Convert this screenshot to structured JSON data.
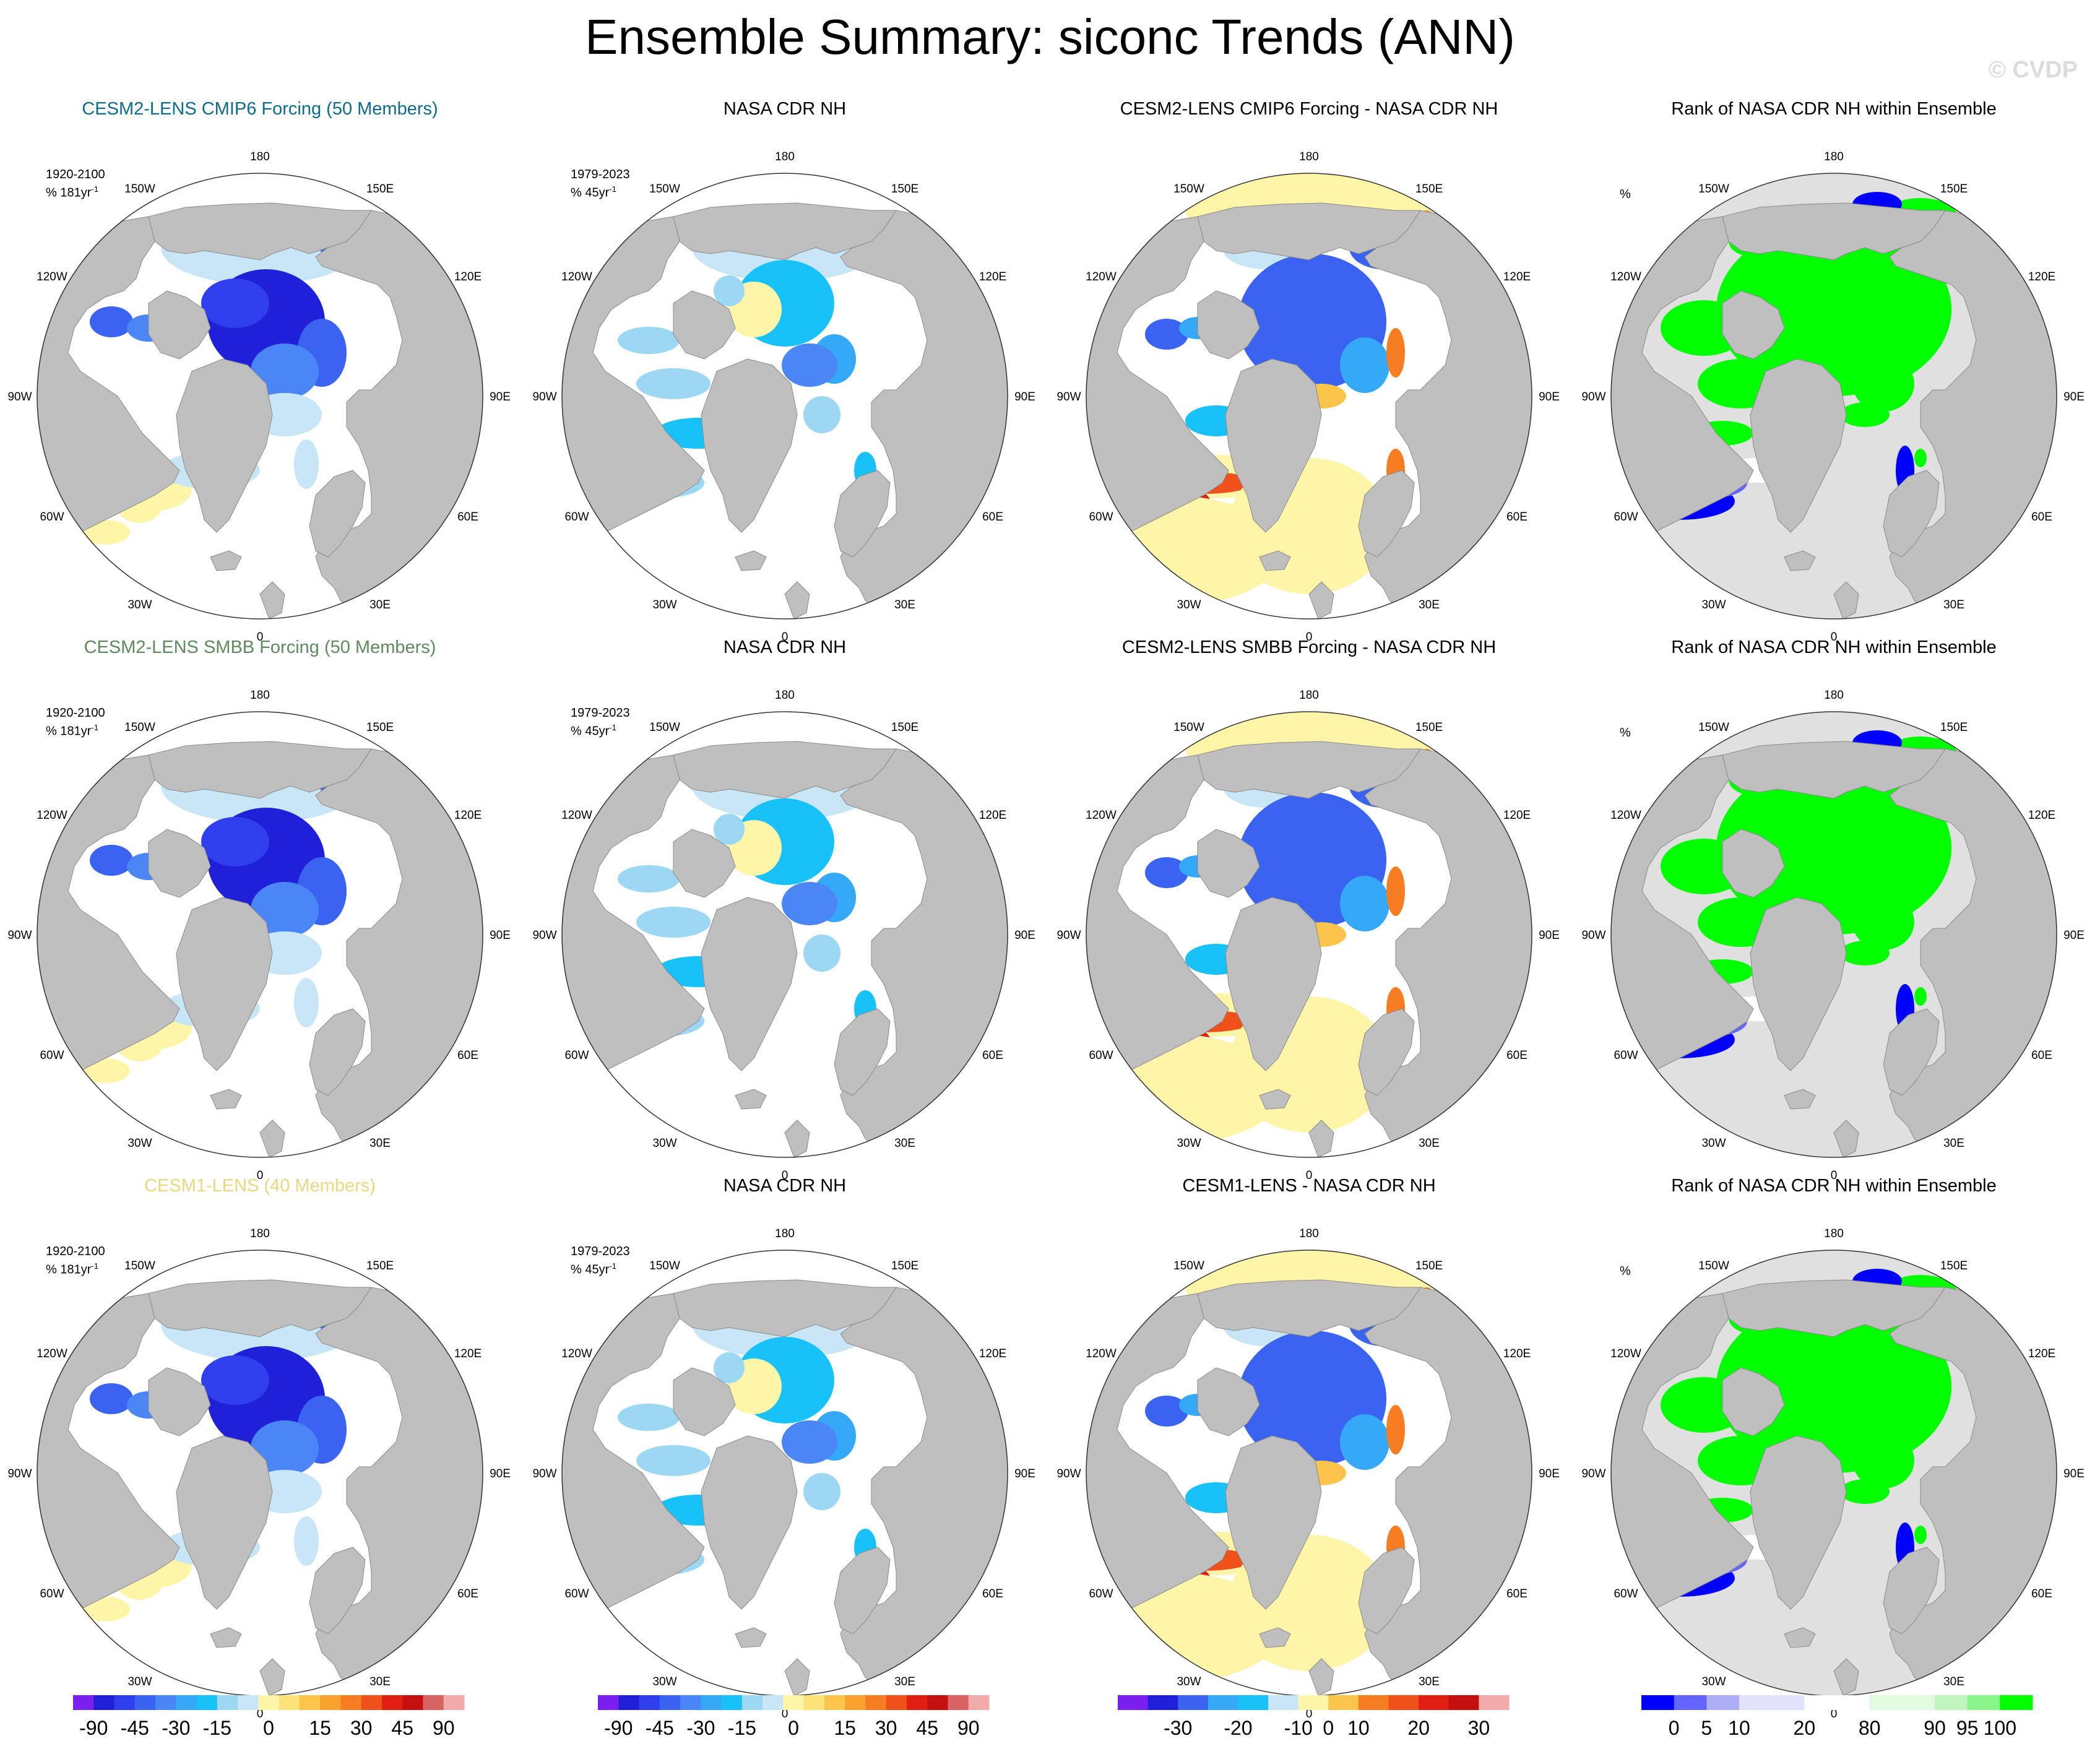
{
  "title": "Ensemble Summary: siconc Trends (ANN)",
  "watermark": "© CVDP",
  "colors": {
    "land": "#bfbfbf",
    "rank_background": "#e0e0e0",
    "ocean": "#ffffff",
    "title_cmip6": "#0d6b8c",
    "title_smbb": "#5f8a5f",
    "title_cesm1": "#e8d980"
  },
  "rows": [
    {
      "model_title": "CESM2-LENS CMIP6 Forcing (50 Members)",
      "obs_title": "NASA CDR NH",
      "diff_title": "CESM2-LENS CMIP6 Forcing - NASA CDR NH",
      "rank_title": "Rank of NASA CDR NH within Ensemble",
      "model_period": "1920-2100",
      "model_units": "% 181yr",
      "obs_period": "1979-2023",
      "obs_units": "% 45yr",
      "rank_units": "%"
    },
    {
      "model_title": "CESM2-LENS SMBB Forcing (50 Members)",
      "obs_title": "NASA CDR NH",
      "diff_title": "CESM2-LENS SMBB Forcing - NASA CDR NH",
      "rank_title": "Rank of NASA CDR NH within Ensemble",
      "model_period": "1920-2100",
      "model_units": "% 181yr",
      "obs_period": "1979-2023",
      "obs_units": "% 45yr",
      "rank_units": "%"
    },
    {
      "model_title": "CESM1-LENS (40 Members)",
      "obs_title": "NASA CDR NH",
      "diff_title": "CESM1-LENS - NASA CDR NH",
      "rank_title": "Rank of NASA CDR NH within Ensemble",
      "model_period": "1920-2100",
      "model_units": "% 181yr",
      "obs_period": "1979-2023",
      "obs_units": "% 45yr",
      "rank_units": "%"
    }
  ],
  "units_exponent": "-1",
  "longitude_labels": [
    "180",
    "150E",
    "120E",
    "90E",
    "60E",
    "30E",
    "0",
    "30W",
    "60W",
    "90W",
    "120W",
    "150W"
  ],
  "colorbars": {
    "trend": {
      "colors": [
        "#7b1ff0",
        "#2020d8",
        "#2f3fee",
        "#3a63f2",
        "#4a86f5",
        "#35a8f7",
        "#18c2f8",
        "#9cd8f3",
        "#c8e6f5",
        "#fff5a8",
        "#fde27a",
        "#fbc44a",
        "#f9a230",
        "#f67d22",
        "#f0501a",
        "#e01e12",
        "#c51010",
        "#d96262",
        "#f2aaaa"
      ],
      "labels": [
        "-90",
        "-45",
        "-30",
        "-15",
        "0",
        "15",
        "30",
        "45",
        "90"
      ]
    },
    "diff": {
      "colors": [
        "#7b1ff0",
        "#2020d8",
        "#3a63f2",
        "#35a8f7",
        "#18c2f8",
        "#c8e6f5",
        "#fff5a8",
        "#fbc44a",
        "#f67d22",
        "#f0501a",
        "#e01e12",
        "#c51010",
        "#f2aaaa"
      ],
      "labels": [
        "-30",
        "-20",
        "-10",
        "0",
        "10",
        "20",
        "30"
      ]
    },
    "rank": {
      "colors": [
        "#0000ff",
        "#6464ff",
        "#aeaef6",
        "#e2e2fb",
        "#e2e2fb",
        "#ffffff",
        "#ffffff",
        "#e0fbe0",
        "#e0fbe0",
        "#c0f5c0",
        "#8af58a",
        "#00ff00"
      ],
      "labels": [
        "0",
        "5",
        "10",
        "20",
        "80",
        "90",
        "95",
        "100"
      ]
    }
  }
}
